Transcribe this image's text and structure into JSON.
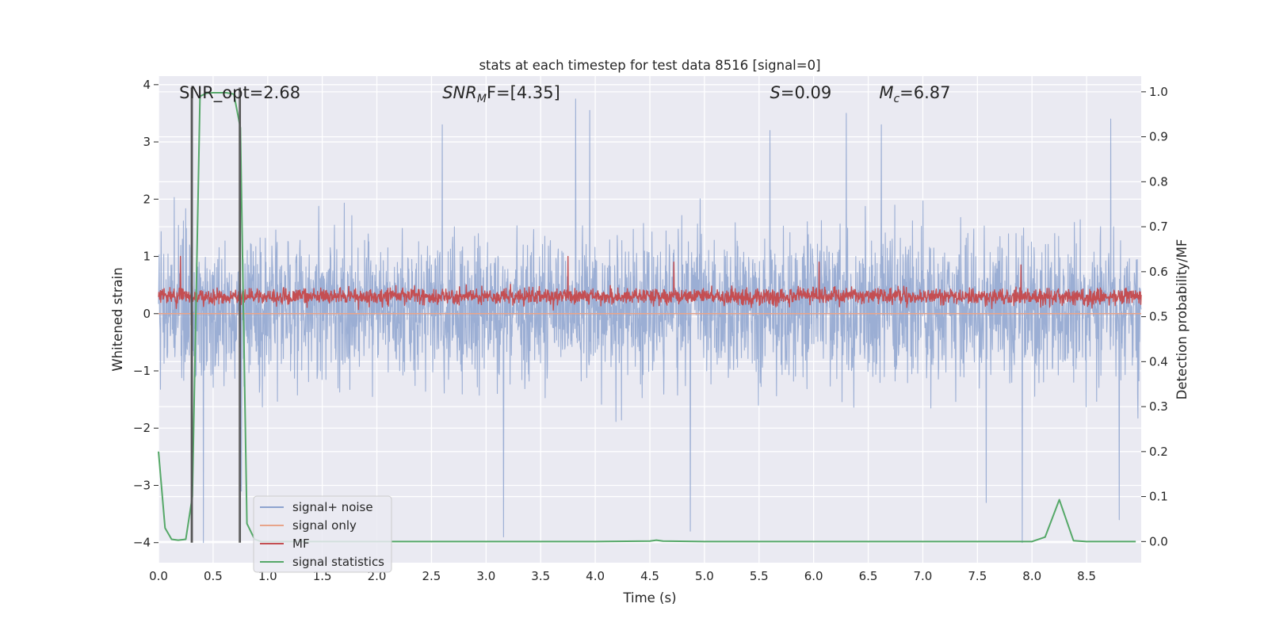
{
  "chart_data": {
    "type": "line",
    "title": "stats at each timestep for test data 8516 [signal=0]",
    "xlabel": "Time (s)",
    "ylabel": "Whitened strain",
    "ylabel_right": "Detection probability/MF",
    "xlim": [
      0.0,
      9.0
    ],
    "ylim": [
      -4.35,
      4.15
    ],
    "ylim_right": [
      -0.047,
      1.035
    ],
    "x_ticks": [
      0.0,
      0.5,
      1.0,
      1.5,
      2.0,
      2.5,
      3.0,
      3.5,
      4.0,
      4.5,
      5.0,
      5.5,
      6.0,
      6.5,
      7.0,
      7.5,
      8.0,
      8.5
    ],
    "x_tick_labels": [
      "0.0",
      "0.5",
      "1.0",
      "1.5",
      "2.0",
      "2.5",
      "3.0",
      "3.5",
      "4.0",
      "4.5",
      "5.0",
      "5.5",
      "6.0",
      "6.5",
      "7.0",
      "7.5",
      "8.0",
      "8.5"
    ],
    "y_ticks": [
      4,
      3,
      2,
      1,
      0,
      -1,
      -2,
      -3,
      -4
    ],
    "y_tick_labels": [
      "4",
      "3",
      "2",
      "1",
      "0",
      "−1",
      "−2",
      "−3",
      "−4"
    ],
    "y_right_ticks": [
      1.0,
      0.9,
      0.8,
      0.7,
      0.6,
      0.5,
      0.4,
      0.3,
      0.2,
      0.1,
      0.0
    ],
    "y_right_tick_labels": [
      "1.0",
      "0.9",
      "0.8",
      "0.7",
      "0.6",
      "0.5",
      "0.4",
      "0.3",
      "0.2",
      "0.1",
      "0.0"
    ],
    "grid": true,
    "legend_position": "lower-left",
    "annotations": [
      {
        "id": "snr-opt",
        "text": "SNR_opt=2.68",
        "x": 0.19
      },
      {
        "id": "snr-mf",
        "base": "SNR",
        "sub": "M",
        "rest": "F=[4.35]",
        "x": 2.6
      },
      {
        "id": "s-val",
        "base": "S",
        "sub": "",
        "rest": "=0.09",
        "x": 5.6
      },
      {
        "id": "mc-val",
        "base": "M",
        "sub": "c",
        "rest": "=6.87",
        "x": 6.6
      }
    ],
    "vlines_x": [
      0.3,
      0.31,
      0.74,
      0.75
    ],
    "series": [
      {
        "name": "signal+ noise",
        "color": "#8da3cf",
        "axis": "left",
        "kind": "dense_noise",
        "x_range": [
          0.0,
          9.0
        ],
        "typical_envelope": [
          -1.7,
          2.0
        ],
        "extreme_range": [
          -4.0,
          3.75
        ],
        "peaks": [
          [
            3.82,
            3.75
          ],
          [
            2.6,
            3.3
          ],
          [
            3.95,
            3.55
          ],
          [
            5.6,
            3.2
          ],
          [
            6.3,
            3.5
          ],
          [
            8.72,
            3.4
          ],
          [
            6.62,
            3.3
          ]
        ],
        "troughs": [
          [
            0.41,
            -4.0
          ],
          [
            7.91,
            -4.0
          ],
          [
            3.16,
            -3.9
          ],
          [
            0.76,
            -3.1
          ],
          [
            4.87,
            -3.8
          ],
          [
            8.8,
            -3.6
          ],
          [
            7.58,
            -3.3
          ]
        ]
      },
      {
        "name": "signal only",
        "color": "#e8a48a",
        "axis": "left",
        "kind": "flat",
        "value": 0.0
      },
      {
        "name": "MF",
        "color": "#c44e52",
        "axis": "left",
        "kind": "dense_noise",
        "x_range": [
          0.0,
          9.0
        ],
        "typical_envelope": [
          0.05,
          0.55
        ],
        "extreme_range": [
          0.0,
          1.0
        ],
        "peaks": [
          [
            0.2,
            1.0
          ],
          [
            3.75,
            1.0
          ],
          [
            4.72,
            0.9
          ],
          [
            6.05,
            0.9
          ],
          [
            7.9,
            0.85
          ]
        ]
      },
      {
        "name": "signal statistics",
        "color": "#55a868",
        "axis": "right",
        "kind": "line",
        "x": [
          0.0,
          0.06,
          0.12,
          0.18,
          0.25,
          0.31,
          0.38,
          0.44,
          0.5,
          0.56,
          0.62,
          0.69,
          0.75,
          0.81,
          0.88,
          0.94,
          1.0,
          2.0,
          3.0,
          4.0,
          4.5,
          4.56,
          4.62,
          5.0,
          6.0,
          7.0,
          7.5,
          8.0,
          8.12,
          8.25,
          8.38,
          8.5,
          8.95
        ],
        "y": [
          0.2,
          0.03,
          0.005,
          0.003,
          0.005,
          0.1,
          0.99,
          0.997,
          0.998,
          0.998,
          0.998,
          0.995,
          0.92,
          0.04,
          0.005,
          0.0,
          0.0,
          0.0,
          0.0,
          0.0,
          0.001,
          0.003,
          0.001,
          0.0,
          0.0,
          0.0,
          0.0,
          0.0,
          0.01,
          0.093,
          0.002,
          0.0,
          0.0
        ]
      }
    ]
  }
}
